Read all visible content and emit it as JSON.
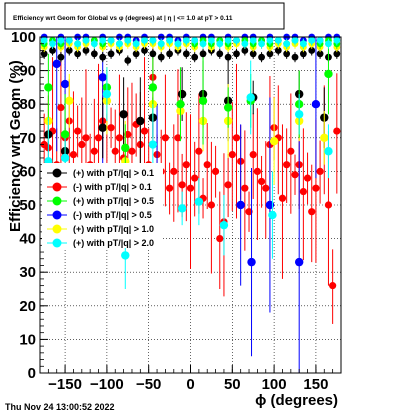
{
  "title": "Efficiency wrt Geom for Global vs φ (degrees) at | η | <= 1.0 at pT > 0.11",
  "footer": "Thu Nov 24 13:00:52 2022",
  "chart_data": {
    "type": "scatter",
    "xlabel": "ϕ (degrees)",
    "ylabel": "Efficiency wrt Geom (%)",
    "xlim": [
      -180,
      180
    ],
    "ylim": [
      0,
      100
    ],
    "x_ticks": [
      -150,
      -100,
      -50,
      0,
      50,
      100,
      150
    ],
    "x_tick_labels": [
      "−150",
      "−100",
      "−50",
      "0",
      "50",
      "100",
      "150"
    ],
    "y_ticks": [
      0,
      10,
      20,
      30,
      40,
      50,
      60,
      70,
      80,
      90,
      100
    ],
    "y_tick_labels": [
      "0",
      "10",
      "20",
      "30",
      "40",
      "50",
      "60",
      "70",
      "80",
      "90",
      "100"
    ],
    "grid": true,
    "legend_position": "left-middle",
    "series": [
      {
        "name": "(+) with pT/|q| > 0.1",
        "color": "#000000",
        "x": [
          -175,
          -165,
          -155,
          -145,
          -135,
          -125,
          -115,
          -105,
          -95,
          -85,
          -75,
          -65,
          -55,
          -45,
          -35,
          -25,
          -15,
          -5,
          5,
          15,
          25,
          35,
          45,
          55,
          65,
          75,
          85,
          95,
          105,
          115,
          125,
          135,
          145,
          155,
          165,
          175
        ],
        "y": [
          95,
          96,
          94,
          96,
          95,
          96,
          95,
          94,
          95,
          96,
          93,
          95,
          96,
          95,
          94,
          95,
          96,
          95,
          94,
          95,
          96,
          95,
          94,
          95,
          96,
          95,
          94,
          95,
          96,
          95,
          94,
          95,
          96,
          95,
          94,
          95
        ],
        "extra_points": [
          [
            -170,
            71
          ],
          [
            -150,
            66
          ],
          [
            -105,
            73
          ],
          [
            -80,
            77
          ],
          [
            -60,
            75
          ],
          [
            -45,
            76
          ],
          [
            -10,
            83
          ],
          [
            15,
            83
          ],
          [
            45,
            81
          ],
          [
            75,
            82
          ],
          [
            130,
            83
          ],
          [
            160,
            76
          ]
        ]
      },
      {
        "name": "(-) with pT/|q| > 0.1",
        "color": "#ff0000",
        "x": [
          -175,
          -170,
          -165,
          -160,
          -155,
          -150,
          -145,
          -140,
          -135,
          -130,
          -125,
          -120,
          -115,
          -110,
          -105,
          -100,
          -95,
          -90,
          -85,
          -80,
          -75,
          -70,
          -65,
          -60,
          -55,
          -50,
          -45,
          -40,
          -35,
          -30,
          -25,
          -20,
          -15,
          -10,
          -5,
          0,
          5,
          10,
          15,
          20,
          25,
          30,
          35,
          40,
          45,
          50,
          55,
          60,
          65,
          70,
          75,
          80,
          85,
          90,
          95,
          100,
          105,
          110,
          115,
          120,
          125,
          130,
          135,
          140,
          145,
          150,
          155,
          160,
          165,
          170,
          175
        ],
        "y": [
          68,
          67,
          72,
          62,
          79,
          70,
          75,
          65,
          72,
          68,
          70,
          62,
          66,
          70,
          75,
          60,
          73,
          66,
          70,
          64,
          71,
          66,
          74,
          68,
          72,
          62,
          88,
          65,
          60,
          70,
          55,
          60,
          70,
          56,
          62,
          55,
          58,
          66,
          52,
          62,
          50,
          60,
          40,
          45,
          56,
          65,
          70,
          63,
          55,
          48,
          65,
          60,
          57,
          55,
          68,
          73,
          70,
          52,
          62,
          66,
          59,
          62,
          54,
          58,
          48,
          55,
          60,
          70,
          50,
          26,
          72
        ]
      },
      {
        "name": "(+) with pT/|q| > 0.5",
        "color": "#00ff00",
        "x": [
          -175,
          -165,
          -155,
          -145,
          -135,
          -125,
          -115,
          -105,
          -95,
          -85,
          -75,
          -65,
          -55,
          -45,
          -35,
          -25,
          -15,
          -5,
          5,
          15,
          25,
          35,
          45,
          55,
          65,
          75,
          85,
          95,
          105,
          115,
          125,
          135,
          145,
          155,
          165,
          175
        ],
        "y": [
          98,
          99,
          98,
          99,
          98,
          99,
          99,
          98,
          99,
          98,
          99,
          98,
          99,
          99,
          98,
          99,
          98,
          99,
          98,
          99,
          98,
          99,
          98,
          99,
          99,
          98,
          99,
          98,
          99,
          98,
          99,
          98,
          99,
          98,
          99,
          98
        ],
        "extra_points": [
          [
            -170,
            85
          ],
          [
            -150,
            71
          ],
          [
            -100,
            85
          ],
          [
            -78,
            67
          ],
          [
            -45,
            85
          ],
          [
            -12,
            80
          ],
          [
            15,
            81
          ],
          [
            45,
            79
          ],
          [
            72,
            81
          ],
          [
            130,
            80
          ],
          [
            165,
            89
          ]
        ]
      },
      {
        "name": "(-) with pT/|q| > 0.5",
        "color": "#0000ff",
        "x": [
          -175,
          -165,
          -155,
          -145,
          -135,
          -125,
          -115,
          -105,
          -95,
          -85,
          -75,
          -65,
          -55,
          -45,
          -35,
          -25,
          -15,
          -5,
          5,
          15,
          25,
          35,
          45,
          55,
          65,
          75,
          85,
          95,
          105,
          115,
          125,
          135,
          145,
          155,
          165,
          175
        ],
        "y": [
          100,
          99,
          100,
          99,
          100,
          100,
          99,
          100,
          99,
          100,
          100,
          99,
          100,
          99,
          100,
          100,
          99,
          100,
          99,
          100,
          100,
          99,
          100,
          99,
          100,
          100,
          99,
          100,
          99,
          100,
          100,
          99,
          100,
          99,
          100,
          100
        ],
        "extra_points": [
          [
            -160,
            92
          ],
          [
            -150,
            86
          ],
          [
            -105,
            88
          ],
          [
            -40,
            60
          ],
          [
            60,
            50
          ],
          [
            73,
            33
          ],
          [
            95,
            50
          ],
          [
            130,
            33
          ],
          [
            150,
            80
          ]
        ]
      },
      {
        "name": "(+) with pT/|q| > 1.0",
        "color": "#ffff00",
        "x": [
          -175,
          -165,
          -155,
          -145,
          -135,
          -125,
          -115,
          -105,
          -95,
          -85,
          -75,
          -65,
          -55,
          -45,
          -35,
          -25,
          -15,
          -5,
          5,
          15,
          25,
          35,
          45,
          55,
          65,
          75,
          85,
          95,
          105,
          115,
          125,
          135,
          145,
          155,
          165,
          175
        ],
        "y": [
          97,
          98,
          97,
          98,
          97,
          98,
          98,
          97,
          98,
          97,
          98,
          97,
          98,
          98,
          97,
          98,
          97,
          98,
          97,
          98,
          97,
          98,
          97,
          98,
          98,
          97,
          98,
          97,
          98,
          97,
          98,
          97,
          98,
          97,
          98,
          97
        ],
        "extra_points": [
          [
            -170,
            75
          ],
          [
            -145,
            81
          ],
          [
            -100,
            81
          ],
          [
            -78,
            63
          ],
          [
            -45,
            80
          ],
          [
            -12,
            78
          ],
          [
            15,
            75
          ],
          [
            45,
            75
          ],
          [
            100,
            69
          ],
          [
            130,
            75
          ],
          [
            160,
            70
          ]
        ]
      },
      {
        "name": "(+) with pT/|q| > 2.0",
        "color": "#00ffff",
        "x": [
          -175,
          -165,
          -155,
          -145,
          -135,
          -125,
          -115,
          -105,
          -95,
          -85,
          -75,
          -65,
          -55,
          -45,
          -35,
          -25,
          -15,
          -5,
          5,
          15,
          25,
          35,
          45,
          55,
          65,
          75,
          85,
          95,
          105,
          115,
          125,
          135,
          145,
          155,
          165,
          175
        ],
        "y": [
          99,
          98,
          99,
          99,
          98,
          99,
          98,
          99,
          99,
          98,
          99,
          98,
          99,
          99,
          98,
          99,
          98,
          99,
          99,
          98,
          99,
          98,
          99,
          99,
          98,
          99,
          98,
          99,
          99,
          98,
          99,
          98,
          99,
          99,
          98,
          99
        ],
        "extra_points": [
          [
            -170,
            63
          ],
          [
            -150,
            64
          ],
          [
            -100,
            83
          ],
          [
            -78,
            35
          ],
          [
            -45,
            68
          ],
          [
            -10,
            49
          ],
          [
            10,
            51
          ],
          [
            40,
            44
          ],
          [
            72,
            82
          ],
          [
            98,
            47
          ],
          [
            130,
            77
          ],
          [
            165,
            66
          ]
        ]
      }
    ]
  }
}
